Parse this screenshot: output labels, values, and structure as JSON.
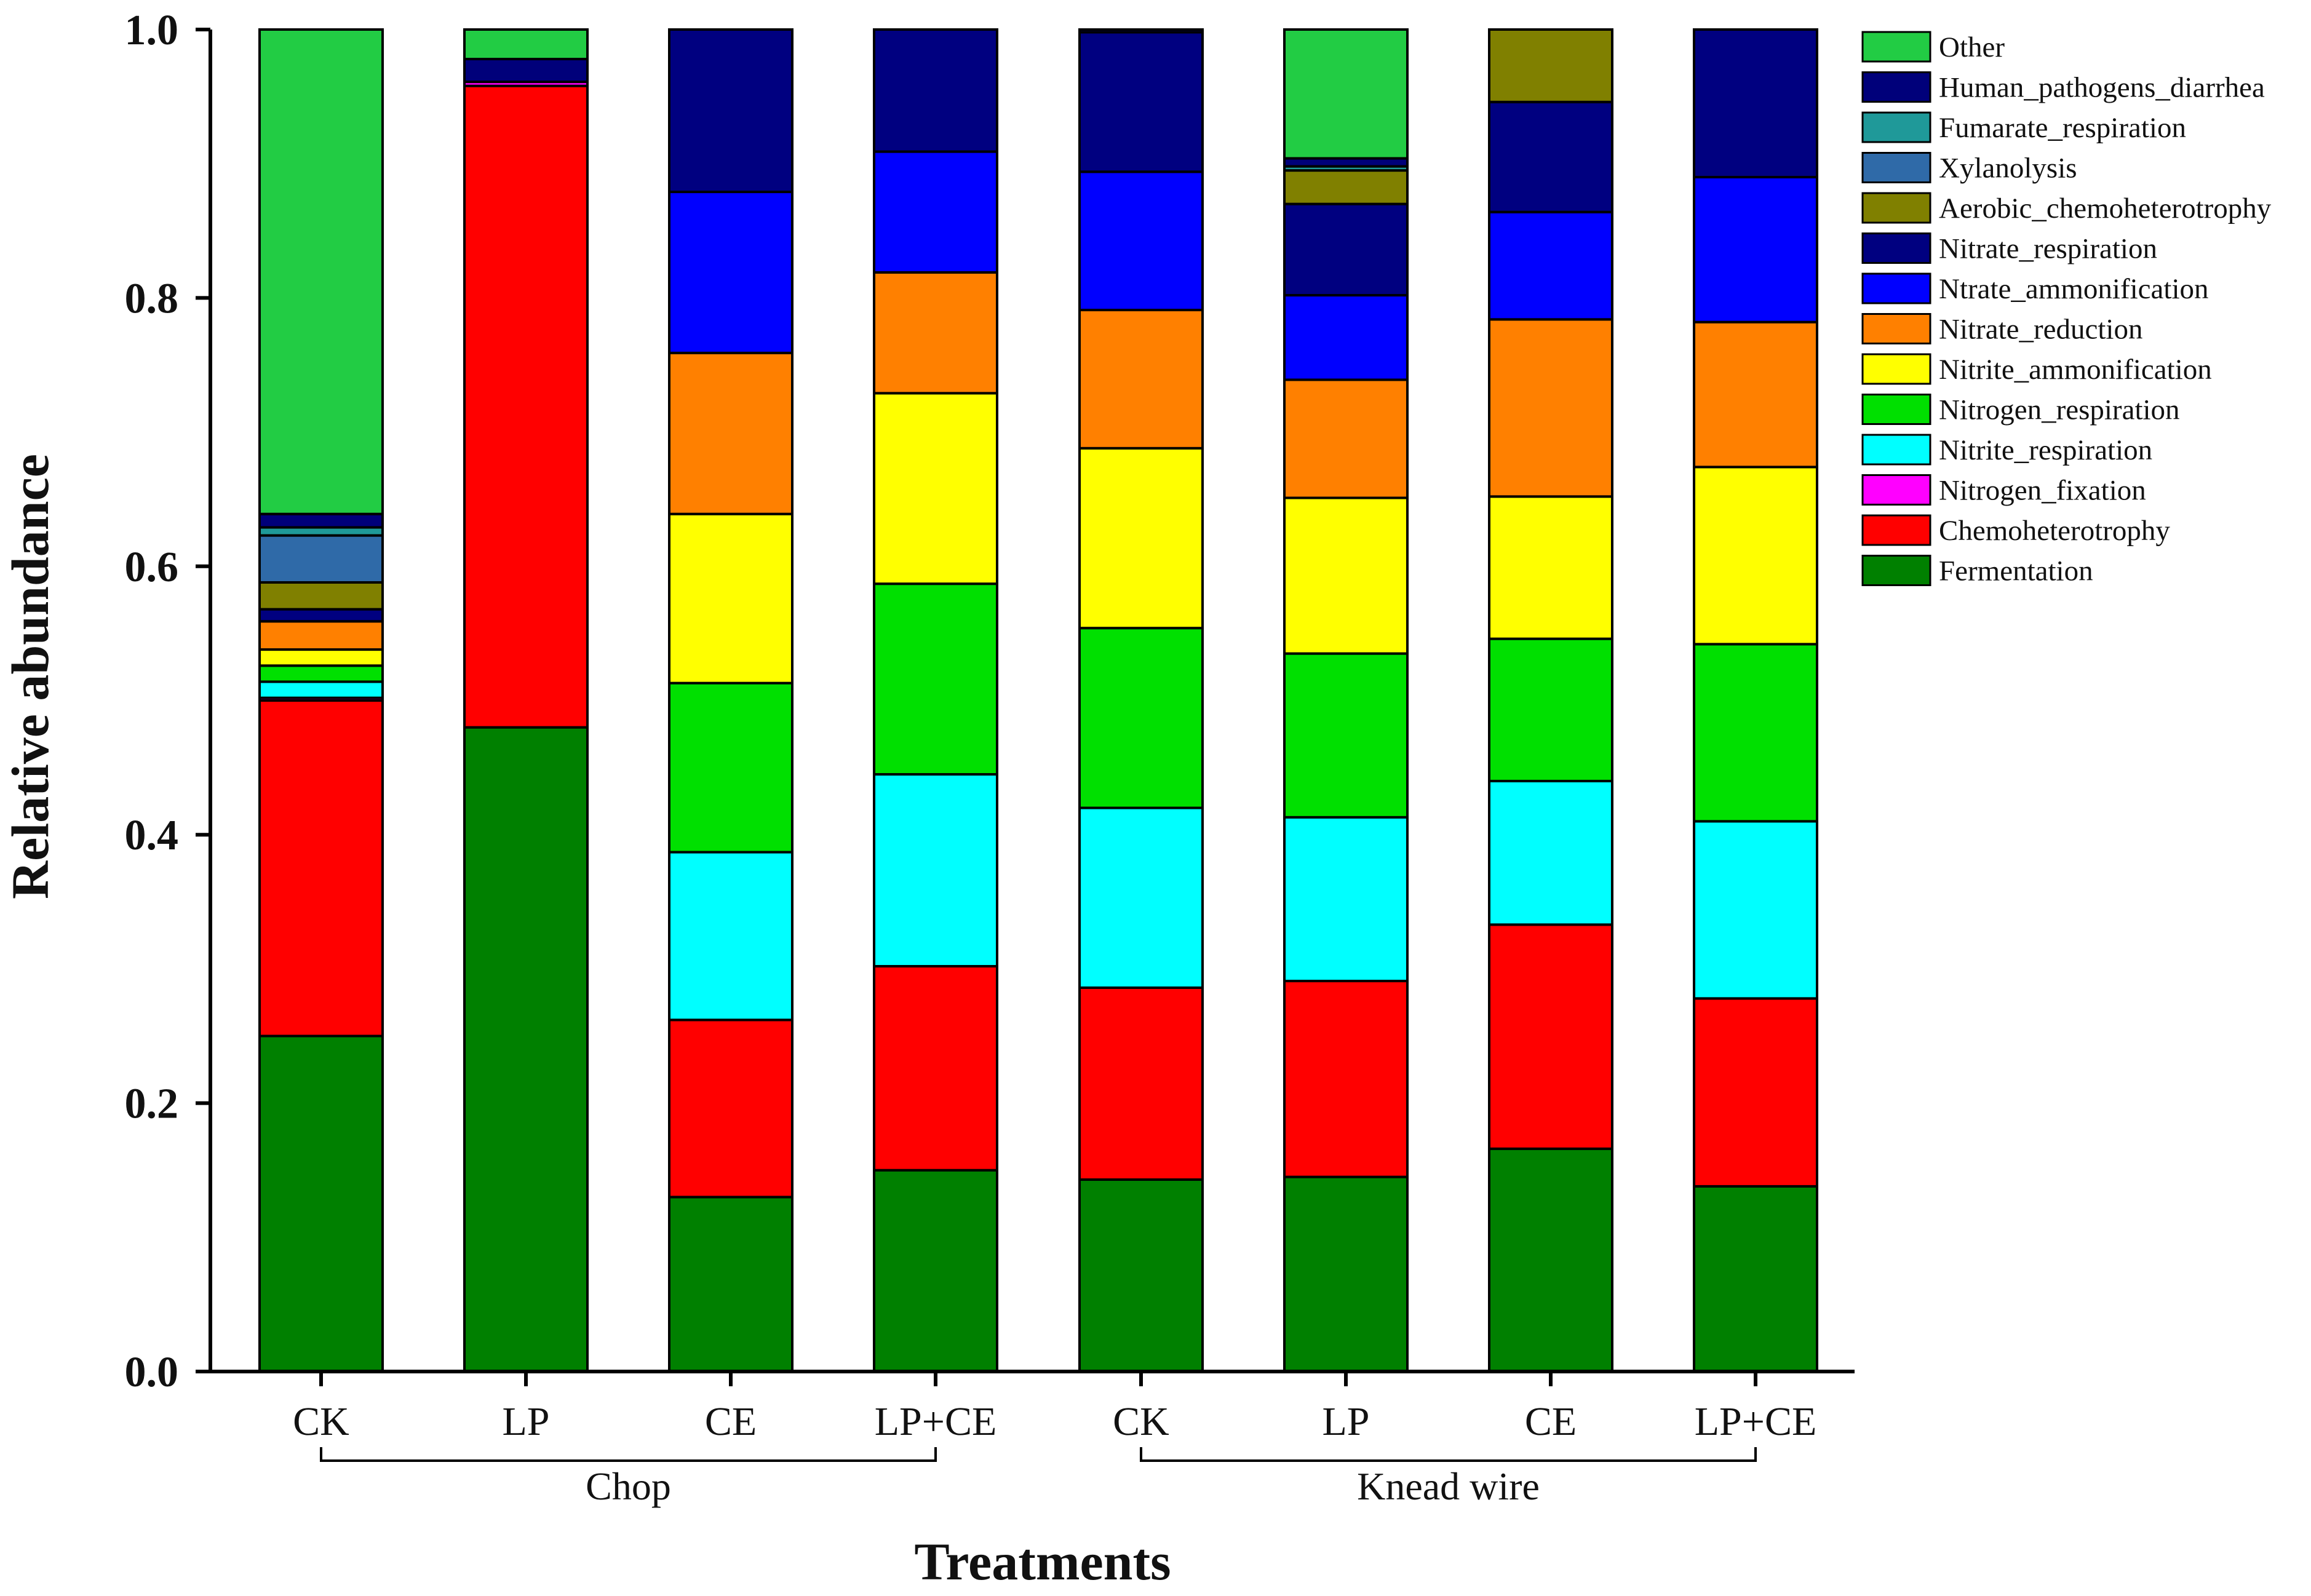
{
  "chart_data": {
    "type": "bar",
    "stacked": true,
    "xlabel": "Treatments",
    "ylabel": "Relative abundance",
    "ylim": [
      0,
      1.0
    ],
    "yticks": [
      "0.0",
      "0.2",
      "0.4",
      "0.6",
      "0.8",
      "1.0"
    ],
    "categories": [
      "CK",
      "LP",
      "CE",
      "LP+CE",
      "CK",
      "LP",
      "CE",
      "LP+CE"
    ],
    "groups": [
      {
        "label": "Chop",
        "from": 0,
        "to": 3
      },
      {
        "label": "Knead wire",
        "from": 4,
        "to": 7
      }
    ],
    "legend_position": "right",
    "series": [
      {
        "name": "Fermentation",
        "color": "#008000",
        "values": [
          0.25,
          0.48,
          0.13,
          0.15,
          0.143,
          0.145,
          0.166,
          0.138
        ]
      },
      {
        "name": "Chemoheterotrophy",
        "color": "#ff0000",
        "values": [
          0.25,
          0.478,
          0.132,
          0.152,
          0.143,
          0.146,
          0.167,
          0.14
        ]
      },
      {
        "name": "Nitrogen_fixation",
        "color": "#ff00ff",
        "values": [
          0.002,
          0.003,
          0.0,
          0.0,
          0.0,
          0.0,
          0.0,
          0.0
        ]
      },
      {
        "name": "Nitrite_respiration",
        "color": "#00ffff",
        "values": [
          0.012,
          0.0,
          0.125,
          0.143,
          0.134,
          0.122,
          0.107,
          0.132
        ]
      },
      {
        "name": "Nitrogen_respiration",
        "color": "#00e000",
        "values": [
          0.012,
          0.0,
          0.126,
          0.142,
          0.134,
          0.122,
          0.106,
          0.132
        ]
      },
      {
        "name": "Nitrite_ammonification",
        "color": "#ffff00",
        "values": [
          0.012,
          0.0,
          0.126,
          0.142,
          0.134,
          0.116,
          0.106,
          0.132
        ]
      },
      {
        "name": "Nitrate_reduction",
        "color": "#ff8000",
        "values": [
          0.021,
          0.0,
          0.12,
          0.09,
          0.103,
          0.088,
          0.132,
          0.108
        ]
      },
      {
        "name": "Ntrate_ammonification",
        "color": "#0000ff",
        "values": [
          0.0,
          0.0,
          0.12,
          0.09,
          0.103,
          0.063,
          0.08,
          0.108
        ]
      },
      {
        "name": "Nitrate_respiration",
        "color": "#000080",
        "values": [
          0.009,
          0.0,
          0.121,
          0.091,
          0.104,
          0.068,
          0.082,
          0.11
        ]
      },
      {
        "name": "Aerobic_chemoheterotrophy",
        "color": "#808000",
        "values": [
          0.02,
          0.0,
          0.0,
          0.0,
          0.0,
          0.025,
          0.054,
          0.0
        ]
      },
      {
        "name": "Xylanolysis",
        "color": "#2f6aa8",
        "values": [
          0.035,
          0.0,
          0.0,
          0.0,
          0.0,
          0.0,
          0.0,
          0.0
        ]
      },
      {
        "name": "Fumarate_respiration",
        "color": "#1f9999",
        "values": [
          0.006,
          0.0,
          0.0,
          0.0,
          0.0,
          0.003,
          0.0,
          0.0
        ]
      },
      {
        "name": "Human_pathogens_diarrhea",
        "color": "#00007a",
        "values": [
          0.01,
          0.017,
          0.0,
          0.0,
          0.002,
          0.006,
          0.0,
          0.0
        ]
      },
      {
        "name": "Other",
        "color": "#22cc44",
        "values": [
          0.361,
          0.022,
          0.0,
          0.0,
          0.0,
          0.096,
          0.0,
          0.0
        ]
      }
    ]
  }
}
